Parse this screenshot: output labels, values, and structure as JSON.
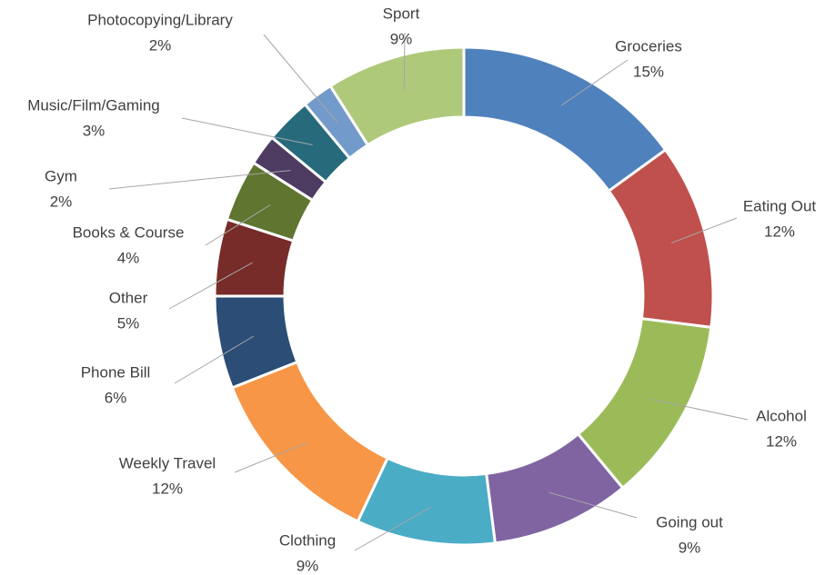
{
  "chart_data": {
    "type": "donut",
    "categories": [
      "Groceries",
      "Eating Out",
      "Alcohol",
      "Going out",
      "Clothing",
      "Weekly Travel",
      "Phone Bill",
      "Other",
      "Books & Course",
      "Gym",
      "Music/Film/Gaming",
      "Photocopying/Library",
      "Sport"
    ],
    "values": [
      15,
      12,
      12,
      9,
      9,
      12,
      6,
      5,
      4,
      2,
      3,
      2,
      9
    ],
    "value_labels": [
      "15%",
      "12%",
      "12%",
      "9%",
      "9%",
      "12%",
      "6%",
      "5%",
      "4%",
      "2%",
      "3%",
      "2%",
      "9%"
    ],
    "colors": [
      "#4f81bd",
      "#c0504d",
      "#9bbb59",
      "#8064a2",
      "#4bacc6",
      "#f79646",
      "#2c4d75",
      "#772c2a",
      "#5f7530",
      "#4d3b62",
      "#276a7c",
      "#729aca",
      "#afc97a"
    ]
  }
}
